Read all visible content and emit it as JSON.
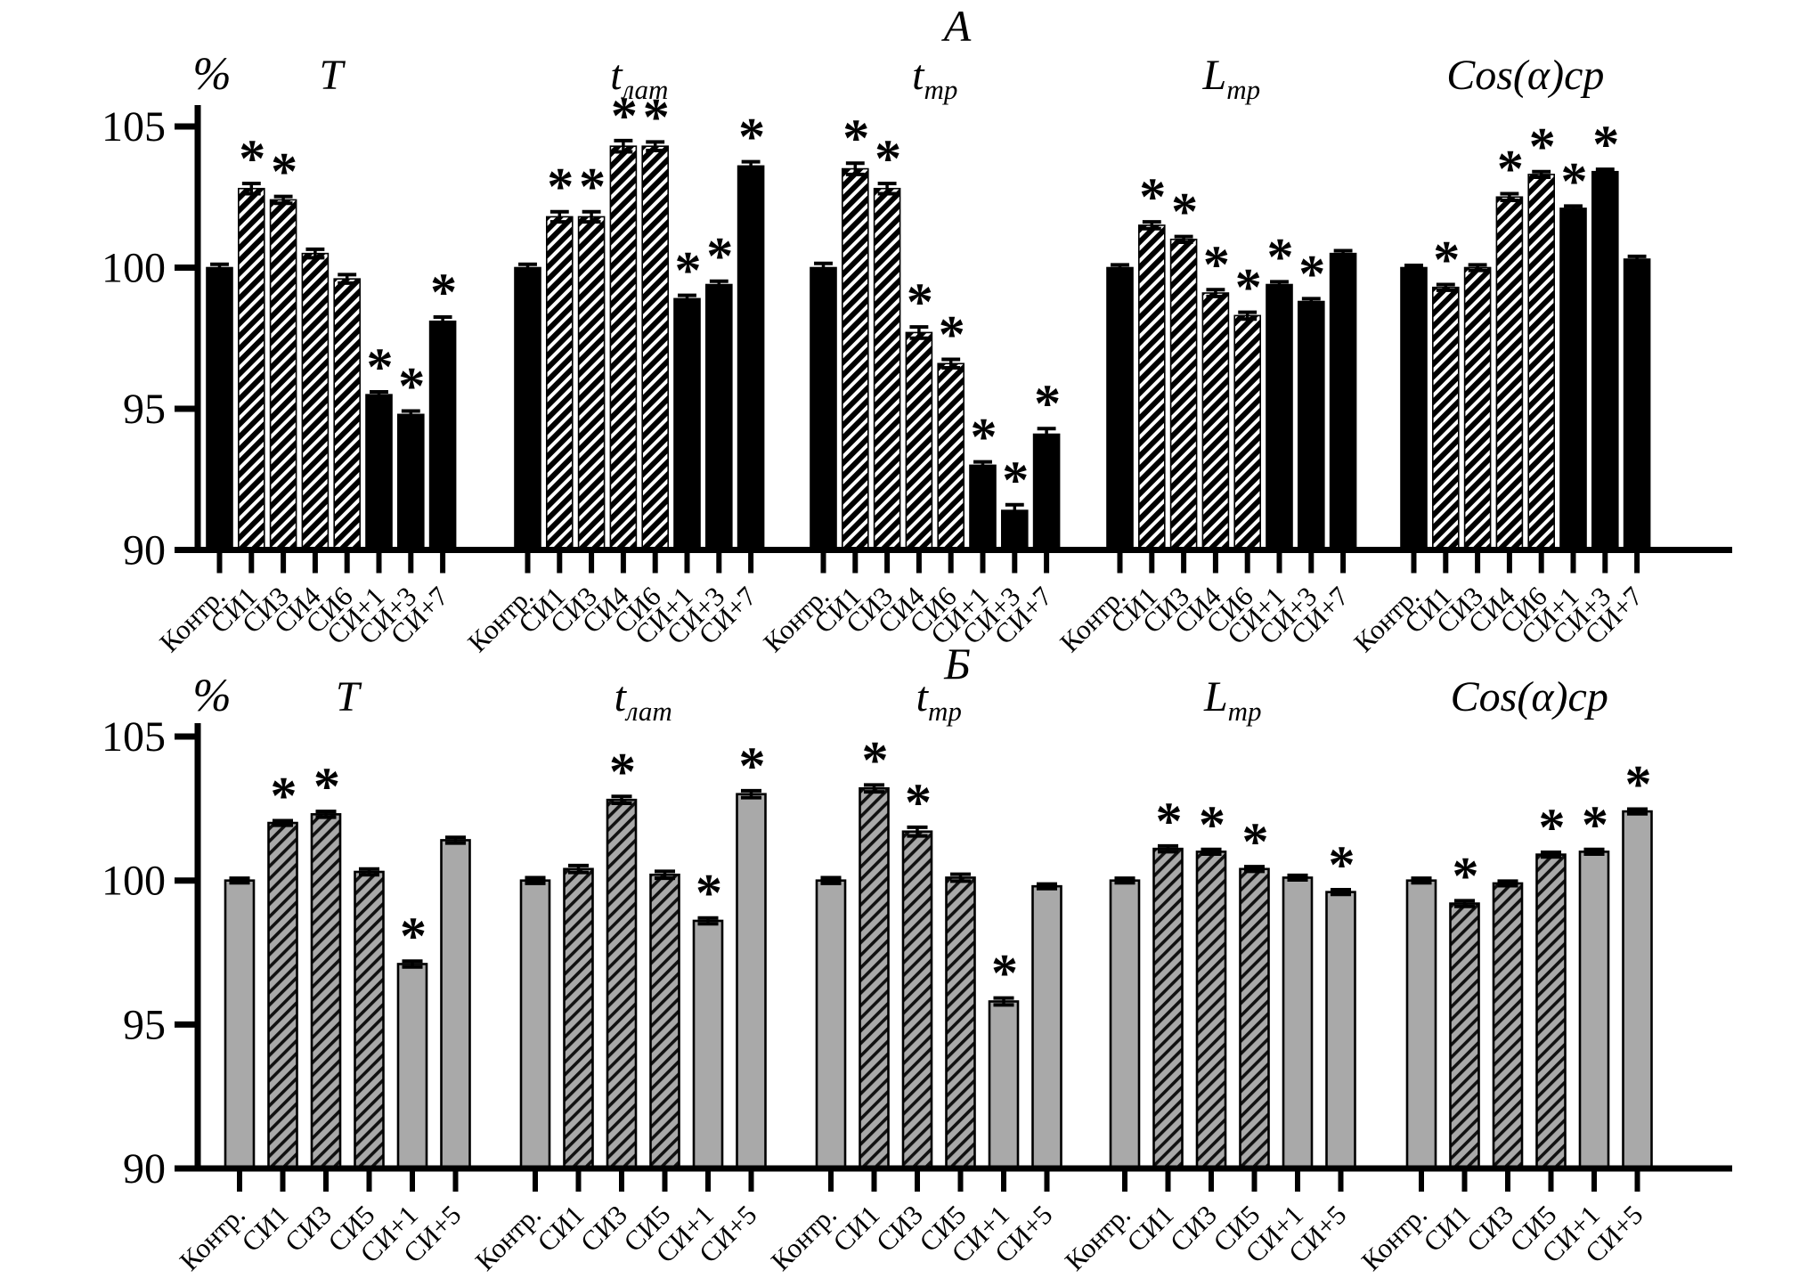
{
  "figure": {
    "panel_titles": [
      "А",
      "Б"
    ],
    "y_unit": "%",
    "significance_marker": "*",
    "colors": {
      "background": "#ffffff",
      "axis": "#000000",
      "panel_a_bar": "#000000",
      "panel_a_hatch_stripe": "#ffffff",
      "panel_b_bar": "#a9a9a9",
      "panel_b_hatch_stripe": "#111111"
    }
  },
  "chart_data": [
    {
      "type": "bar",
      "panel_title": "А",
      "percent_label": "%",
      "ylim": [
        90,
        105
      ],
      "y_ticks": [
        105,
        100,
        95,
        90
      ],
      "grid": false,
      "legend": "none",
      "bar_fill": "#000000",
      "hatch_stripe": "#ffffff",
      "bar_outline": "#000000",
      "significance_marker": "*",
      "categories": [
        "Контр.",
        "СИ1",
        "СИ3",
        "СИ4",
        "СИ6",
        "СИ+1",
        "СИ+3",
        "СИ+7"
      ],
      "hatched": [
        false,
        true,
        true,
        true,
        true,
        false,
        false,
        false
      ],
      "groups": [
        {
          "label": "T",
          "label_sub": "",
          "values": [
            100.0,
            102.8,
            102.4,
            100.5,
            99.6,
            95.5,
            94.8,
            98.1
          ],
          "errors": [
            0.12,
            0.18,
            0.12,
            0.15,
            0.15,
            0.1,
            0.12,
            0.15
          ],
          "significant": [
            false,
            true,
            true,
            false,
            false,
            true,
            true,
            true
          ]
        },
        {
          "label": "t",
          "label_sub": "лат",
          "values": [
            100.0,
            101.8,
            101.8,
            104.3,
            104.3,
            98.9,
            99.4,
            103.6
          ],
          "errors": [
            0.12,
            0.18,
            0.18,
            0.2,
            0.15,
            0.12,
            0.12,
            0.15
          ],
          "significant": [
            false,
            true,
            true,
            true,
            true,
            true,
            true,
            true
          ]
        },
        {
          "label": "t",
          "label_sub": "тр",
          "values": [
            100.0,
            103.5,
            102.8,
            97.7,
            96.6,
            93.0,
            91.4,
            94.1
          ],
          "errors": [
            0.15,
            0.2,
            0.18,
            0.2,
            0.15,
            0.12,
            0.2,
            0.2
          ],
          "significant": [
            false,
            true,
            true,
            true,
            true,
            true,
            true,
            true
          ]
        },
        {
          "label": "L",
          "label_sub": "тр",
          "values": [
            100.0,
            101.5,
            101.0,
            99.1,
            98.3,
            99.4,
            98.8,
            100.5
          ],
          "errors": [
            0.1,
            0.12,
            0.1,
            0.12,
            0.12,
            0.1,
            0.1,
            0.1
          ],
          "significant": [
            false,
            true,
            true,
            true,
            true,
            true,
            true,
            false
          ]
        },
        {
          "label": "Cos(α)ср",
          "label_sub": "",
          "values": [
            100.0,
            99.3,
            100.0,
            102.5,
            103.3,
            102.1,
            103.4,
            100.3
          ],
          "errors": [
            0.08,
            0.1,
            0.1,
            0.12,
            0.1,
            0.08,
            0.08,
            0.1
          ],
          "significant": [
            false,
            true,
            false,
            true,
            true,
            true,
            true,
            false
          ]
        }
      ]
    },
    {
      "type": "bar",
      "panel_title": "Б",
      "percent_label": "%",
      "ylim": [
        90,
        105
      ],
      "y_ticks": [
        105,
        100,
        95,
        90
      ],
      "grid": false,
      "legend": "none",
      "bar_fill": "#a9a9a9",
      "hatch_stripe": "#111111",
      "bar_outline": "#000000",
      "significance_marker": "*",
      "categories": [
        "Контр.",
        "СИ1",
        "СИ3",
        "СИ5",
        "СИ+1",
        "СИ+5"
      ],
      "hatched": [
        false,
        true,
        true,
        true,
        false,
        false
      ],
      "groups": [
        {
          "label": "T",
          "label_sub": "",
          "values": [
            100.0,
            102.0,
            102.3,
            100.3,
            97.1,
            101.4
          ],
          "errors": [
            0.08,
            0.08,
            0.1,
            0.1,
            0.1,
            0.1
          ],
          "significant": [
            false,
            true,
            true,
            false,
            true,
            false
          ]
        },
        {
          "label": "t",
          "label_sub": "лат",
          "values": [
            100.0,
            100.4,
            102.8,
            100.2,
            98.6,
            103.0
          ],
          "errors": [
            0.1,
            0.12,
            0.12,
            0.12,
            0.1,
            0.12
          ],
          "significant": [
            false,
            false,
            true,
            false,
            true,
            true
          ]
        },
        {
          "label": "t",
          "label_sub": "тр",
          "values": [
            100.0,
            103.2,
            101.7,
            100.1,
            95.8,
            99.8
          ],
          "errors": [
            0.1,
            0.12,
            0.15,
            0.12,
            0.12,
            0.08
          ],
          "significant": [
            false,
            true,
            true,
            false,
            true,
            false
          ]
        },
        {
          "label": "L",
          "label_sub": "тр",
          "values": [
            100.0,
            101.1,
            101.0,
            100.4,
            100.1,
            99.6
          ],
          "errors": [
            0.08,
            0.1,
            0.08,
            0.08,
            0.08,
            0.08
          ],
          "significant": [
            false,
            true,
            true,
            true,
            false,
            true
          ]
        },
        {
          "label": "Cos(α)ср",
          "label_sub": "",
          "values": [
            100.0,
            99.2,
            99.9,
            100.9,
            101.0,
            102.4
          ],
          "errors": [
            0.08,
            0.1,
            0.08,
            0.08,
            0.08,
            0.08
          ],
          "significant": [
            false,
            true,
            false,
            true,
            true,
            true
          ]
        }
      ]
    }
  ]
}
